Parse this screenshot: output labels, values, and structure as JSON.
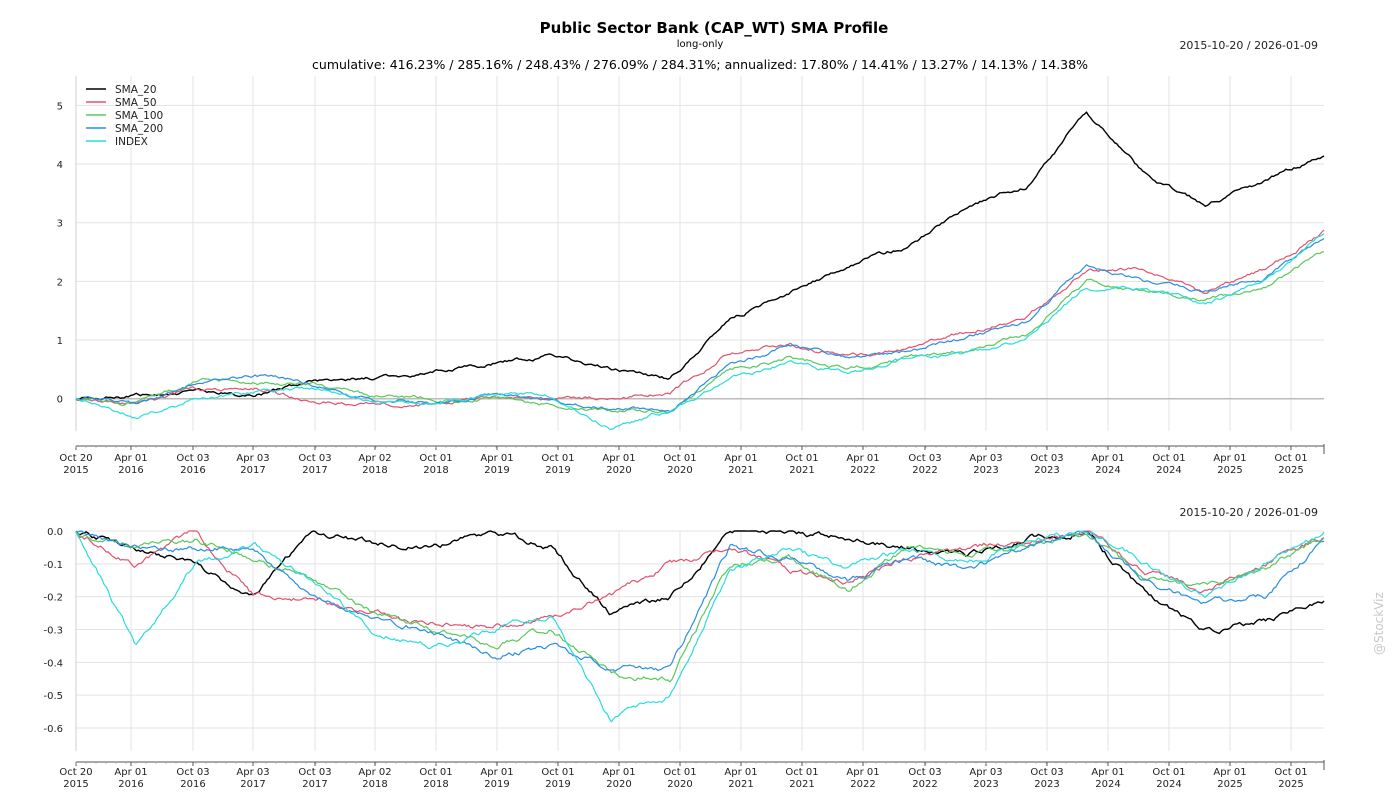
{
  "header": {
    "title": "Public Sector Bank (CAP_WT) SMA Profile",
    "subtitle": "long-only",
    "summary": "cumulative: 416.23% / 285.16% / 248.43% / 276.09% / 284.31%; annualized: 17.80% / 14.41% / 13.27% / 14.13% / 14.38%",
    "date_range_top": "2015-10-20 / 2026-01-09",
    "date_range_bottom": "2015-10-20 / 2026-01-09"
  },
  "watermark": "@StockViz",
  "chart_data": [
    {
      "type": "line",
      "title": "Public Sector Bank (CAP_WT) SMA Profile",
      "subtitle": "long-only",
      "x_tick_labels": [
        "Oct 20 2015",
        "Apr 01 2016",
        "Oct 03 2016",
        "Apr 03 2017",
        "Oct 03 2017",
        "Apr 02 2018",
        "Oct 01 2018",
        "Apr 01 2019",
        "Oct 01 2019",
        "Apr 01 2020",
        "Oct 01 2020",
        "Apr 01 2021",
        "Oct 01 2021",
        "Apr 01 2022",
        "Oct 03 2022",
        "Apr 03 2023",
        "Oct 03 2023",
        "Apr 01 2024",
        "Oct 01 2024",
        "Apr 01 2025",
        "Oct 01 2025"
      ],
      "ylim": [
        -0.55,
        5.5
      ],
      "y_ticks": [
        0,
        1,
        2,
        3,
        4,
        5
      ],
      "grid": true,
      "legend_position": "top-left",
      "x": [
        "2015-10",
        "2016-04",
        "2016-10",
        "2017-04",
        "2017-10",
        "2018-04",
        "2018-10",
        "2019-04",
        "2019-10",
        "2020-04",
        "2020-10",
        "2021-04",
        "2021-10",
        "2022-04",
        "2022-10",
        "2023-04",
        "2023-10",
        "2024-04",
        "2024-10",
        "2025-04",
        "2025-10",
        "2026-01"
      ],
      "series": [
        {
          "name": "SMA_20",
          "color": "#000000",
          "values": [
            0.0,
            0.05,
            0.15,
            0.05,
            0.3,
            0.35,
            0.45,
            0.6,
            0.75,
            0.5,
            0.35,
            1.35,
            1.8,
            2.25,
            2.6,
            3.3,
            3.6,
            4.9,
            3.8,
            3.3,
            3.7,
            4.16
          ]
        },
        {
          "name": "SMA_50",
          "color": "#e0536e",
          "values": [
            0.0,
            -0.07,
            0.15,
            0.2,
            -0.05,
            -0.08,
            -0.1,
            0.05,
            0.0,
            0.0,
            0.1,
            0.8,
            0.95,
            0.7,
            0.85,
            1.15,
            1.4,
            2.2,
            2.2,
            1.8,
            2.2,
            2.85
          ]
        },
        {
          "name": "SMA_100",
          "color": "#5ac85a",
          "values": [
            0.0,
            -0.07,
            0.3,
            0.3,
            0.25,
            0.05,
            0.0,
            -0.02,
            -0.1,
            -0.2,
            -0.2,
            0.5,
            0.7,
            0.5,
            0.7,
            0.85,
            1.1,
            2.0,
            1.85,
            1.7,
            1.9,
            2.48
          ]
        },
        {
          "name": "SMA_200",
          "color": "#2a8ee0",
          "values": [
            0.0,
            -0.07,
            0.25,
            0.4,
            0.25,
            0.0,
            -0.05,
            0.05,
            -0.05,
            -0.15,
            -0.2,
            0.6,
            0.9,
            0.7,
            0.8,
            1.05,
            1.3,
            2.3,
            2.0,
            1.85,
            2.05,
            2.76
          ]
        },
        {
          "name": "INDEX",
          "color": "#2adcdc",
          "values": [
            0.0,
            -0.3,
            0.0,
            0.1,
            0.2,
            -0.05,
            -0.1,
            0.1,
            0.05,
            -0.5,
            -0.2,
            0.35,
            0.6,
            0.45,
            0.7,
            0.75,
            1.0,
            1.9,
            1.9,
            1.6,
            2.0,
            2.84
          ]
        }
      ]
    },
    {
      "type": "line",
      "x_tick_labels": [
        "Oct 20 2015",
        "Apr 01 2016",
        "Oct 03 2016",
        "Apr 03 2017",
        "Oct 03 2017",
        "Apr 02 2018",
        "Oct 01 2018",
        "Apr 01 2019",
        "Oct 01 2019",
        "Apr 01 2020",
        "Oct 01 2020",
        "Apr 01 2021",
        "Oct 01 2021",
        "Apr 01 2022",
        "Oct 03 2022",
        "Apr 03 2023",
        "Oct 03 2023",
        "Apr 01 2024",
        "Oct 01 2024",
        "Apr 01 2025",
        "Oct 01 2025"
      ],
      "ylim": [
        -0.67,
        0
      ],
      "y_ticks": [
        0.0,
        -0.1,
        -0.2,
        -0.3,
        -0.4,
        -0.5,
        -0.6
      ],
      "grid": true,
      "x": [
        "2015-10",
        "2016-04",
        "2016-10",
        "2017-04",
        "2017-10",
        "2018-04",
        "2018-10",
        "2019-04",
        "2019-10",
        "2020-04",
        "2020-10",
        "2021-04",
        "2021-10",
        "2022-04",
        "2022-10",
        "2023-04",
        "2023-10",
        "2024-04",
        "2024-10",
        "2025-04",
        "2025-10",
        "2026-01"
      ],
      "series": [
        {
          "name": "SMA_20",
          "color": "#000000",
          "values": [
            0.0,
            -0.05,
            -0.1,
            -0.2,
            0.0,
            -0.03,
            -0.05,
            0.0,
            -0.05,
            -0.25,
            -0.2,
            0.0,
            0.0,
            -0.02,
            -0.05,
            -0.08,
            -0.02,
            0.0,
            -0.2,
            -0.3,
            -0.28,
            -0.21
          ]
        },
        {
          "name": "SMA_50",
          "color": "#e0536e",
          "values": [
            0.0,
            -0.1,
            0.0,
            -0.2,
            -0.2,
            -0.25,
            -0.28,
            -0.3,
            -0.25,
            -0.2,
            -0.1,
            -0.05,
            -0.12,
            -0.15,
            -0.08,
            -0.05,
            -0.03,
            0.0,
            -0.12,
            -0.18,
            -0.1,
            -0.02
          ]
        },
        {
          "name": "SMA_100",
          "color": "#5ac85a",
          "values": [
            0.0,
            -0.05,
            -0.03,
            -0.08,
            -0.15,
            -0.25,
            -0.3,
            -0.35,
            -0.3,
            -0.43,
            -0.45,
            -0.1,
            -0.08,
            -0.18,
            -0.05,
            -0.07,
            -0.05,
            0.0,
            -0.15,
            -0.17,
            -0.12,
            -0.02
          ]
        },
        {
          "name": "SMA_200",
          "color": "#2a8ee0",
          "values": [
            0.0,
            -0.05,
            -0.05,
            -0.05,
            -0.2,
            -0.28,
            -0.3,
            -0.38,
            -0.35,
            -0.42,
            -0.42,
            -0.05,
            -0.08,
            -0.15,
            -0.08,
            -0.12,
            -0.05,
            0.0,
            -0.15,
            -0.22,
            -0.2,
            -0.03
          ]
        },
        {
          "name": "INDEX",
          "color": "#2adcdc",
          "values": [
            0.0,
            -0.35,
            -0.1,
            -0.05,
            -0.15,
            -0.3,
            -0.35,
            -0.3,
            -0.25,
            -0.58,
            -0.5,
            -0.12,
            -0.05,
            -0.12,
            -0.05,
            -0.1,
            -0.03,
            0.0,
            -0.1,
            -0.2,
            -0.1,
            -0.01
          ]
        }
      ]
    }
  ]
}
